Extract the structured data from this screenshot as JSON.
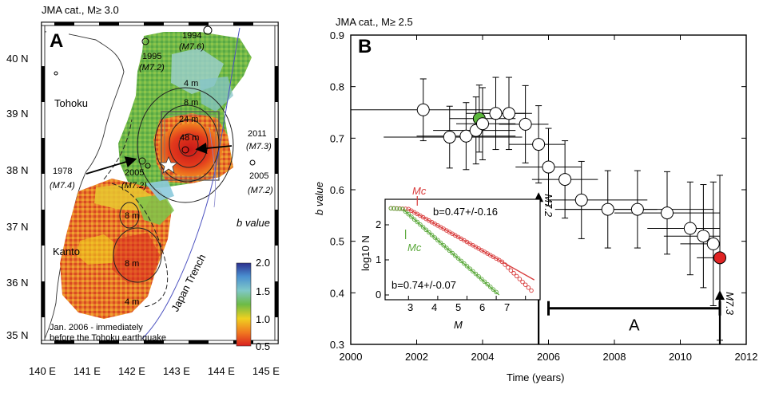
{
  "panel_a": {
    "letter": "A",
    "catalog_label": "JMA cat., M≥ 3.0",
    "lat_ticks": [
      "40 N",
      "39 N",
      "38 N",
      "37 N",
      "36 N",
      "35 N"
    ],
    "lon_ticks": [
      "140 E",
      "141 E",
      "142 E",
      "143 E",
      "144 E",
      "145 E"
    ],
    "regions": {
      "tohoku": "Tohoku",
      "kanto": "Kanto",
      "trench": "Japan Trench"
    },
    "events": [
      {
        "year": "1994",
        "mag": "(M7.6)"
      },
      {
        "year": "1995",
        "mag": "(M7.2)"
      },
      {
        "year": "2011",
        "mag": "(M7.3)"
      },
      {
        "year": "1978",
        "mag": "(M7.4)"
      },
      {
        "year": "2005",
        "mag": "(M7.2)"
      },
      {
        "year": "2005",
        "mag": "(M7.2)"
      }
    ],
    "contours": [
      "4 m",
      "8 m",
      "24 m",
      "48 m",
      "8 m",
      "8 m",
      "4 m"
    ],
    "colorbar": {
      "title": "b value",
      "ticks": [
        "2.0",
        "1.5",
        "1.0",
        "0.5"
      ],
      "stops": [
        "#2b2f8f",
        "#4a8fd0",
        "#7fc8c8",
        "#6dbb45",
        "#f0d020",
        "#f07820",
        "#d81f1f"
      ]
    },
    "caption_line1": "Jan. 2006 - immediately",
    "caption_line2": "before the Tohoku earthquake"
  },
  "panel_b": {
    "letter": "B",
    "catalog_label": "JMA cat., M≥ 2.5",
    "xlabel": "Time (years)",
    "ylabel": "b value",
    "x_ticks": [
      "2000",
      "2002",
      "2004",
      "2006",
      "2008",
      "2010",
      "2012"
    ],
    "y_ticks": [
      "0.3",
      "0.4",
      "0.5",
      "0.6",
      "0.7",
      "0.8",
      "0.9"
    ],
    "arrow_labels": [
      "M7.2",
      "M7.3"
    ],
    "period_label": "A",
    "inset": {
      "ylabel": "log10 N",
      "xlabel": "M",
      "x_ticks": [
        "3",
        "4",
        "5",
        "6",
        "7"
      ],
      "y_ticks": [
        "0",
        "1",
        "2"
      ],
      "mc_red": "Mc",
      "mc_green": "Mc",
      "b_red": "b=0.47+/-0.16",
      "b_green": "b=0.74+/-0.07"
    }
  },
  "chart_data": {
    "type": "scatter",
    "xlabel": "Time (years)",
    "ylabel": "b value",
    "xlim": [
      2000,
      2012
    ],
    "ylim": [
      0.3,
      0.9
    ],
    "points": [
      {
        "x": 2002.2,
        "y": 0.755,
        "xerr_lo": 2000.0,
        "xerr_hi": 2004.5,
        "yerr": 0.06,
        "color": "white"
      },
      {
        "x": 2003.0,
        "y": 0.702,
        "xerr_lo": 2001.0,
        "xerr_hi": 2005.2,
        "yerr": 0.06,
        "color": "white"
      },
      {
        "x": 2003.5,
        "y": 0.704,
        "xerr_lo": 2002.0,
        "xerr_hi": 2005.0,
        "yerr": 0.065,
        "color": "white"
      },
      {
        "x": 2003.8,
        "y": 0.715,
        "xerr_lo": 2002.5,
        "xerr_hi": 2005.0,
        "yerr": 0.065,
        "color": "white"
      },
      {
        "x": 2003.9,
        "y": 0.738,
        "xerr_lo": 2003.0,
        "xerr_hi": 2005.0,
        "yerr": 0.065,
        "color": "green"
      },
      {
        "x": 2004.0,
        "y": 0.728,
        "xerr_lo": 2003.2,
        "xerr_hi": 2005.0,
        "yerr": 0.07,
        "color": "white"
      },
      {
        "x": 2004.4,
        "y": 0.748,
        "xerr_lo": 2003.5,
        "xerr_hi": 2005.3,
        "yerr": 0.07,
        "color": "white"
      },
      {
        "x": 2004.8,
        "y": 0.748,
        "xerr_lo": 2004.0,
        "xerr_hi": 2005.5,
        "yerr": 0.07,
        "color": "white"
      },
      {
        "x": 2005.3,
        "y": 0.727,
        "xerr_lo": 2004.5,
        "xerr_hi": 2006.0,
        "yerr": 0.075,
        "color": "white"
      },
      {
        "x": 2005.7,
        "y": 0.688,
        "xerr_lo": 2004.8,
        "xerr_hi": 2006.5,
        "yerr": 0.075,
        "color": "white"
      },
      {
        "x": 2006.0,
        "y": 0.644,
        "xerr_lo": 2005.0,
        "xerr_hi": 2007.0,
        "yerr": 0.075,
        "color": "white"
      },
      {
        "x": 2006.5,
        "y": 0.62,
        "xerr_lo": 2005.5,
        "xerr_hi": 2007.5,
        "yerr": 0.075,
        "color": "white"
      },
      {
        "x": 2007.0,
        "y": 0.58,
        "xerr_lo": 2006.0,
        "xerr_hi": 2009.0,
        "yerr": 0.075,
        "color": "white"
      },
      {
        "x": 2007.8,
        "y": 0.562,
        "xerr_lo": 2006.2,
        "xerr_hi": 2009.3,
        "yerr": 0.075,
        "color": "white"
      },
      {
        "x": 2008.7,
        "y": 0.562,
        "xerr_lo": 2006.5,
        "xerr_hi": 2011.0,
        "yerr": 0.075,
        "color": "white"
      },
      {
        "x": 2009.6,
        "y": 0.555,
        "xerr_lo": 2008.0,
        "xerr_hi": 2011.2,
        "yerr": 0.08,
        "color": "white"
      },
      {
        "x": 2010.3,
        "y": 0.525,
        "xerr_lo": 2009.0,
        "xerr_hi": 2011.2,
        "yerr": 0.09,
        "color": "white"
      },
      {
        "x": 2010.7,
        "y": 0.51,
        "xerr_lo": 2009.5,
        "xerr_hi": 2011.2,
        "yerr": 0.1,
        "color": "white"
      },
      {
        "x": 2011.0,
        "y": 0.495,
        "xerr_lo": 2010.0,
        "xerr_hi": 2011.2,
        "yerr": 0.12,
        "color": "white"
      },
      {
        "x": 2011.2,
        "y": 0.468,
        "xerr_lo": 2010.5,
        "xerr_hi": 2011.2,
        "yerr": 0.16,
        "color": "red"
      }
    ],
    "events": [
      {
        "x": 2005.7,
        "label": "M7.2"
      },
      {
        "x": 2011.2,
        "label": "M7.3"
      }
    ],
    "period": {
      "label": "A",
      "start": 2006.0,
      "end": 2011.2,
      "y": 0.33
    }
  }
}
